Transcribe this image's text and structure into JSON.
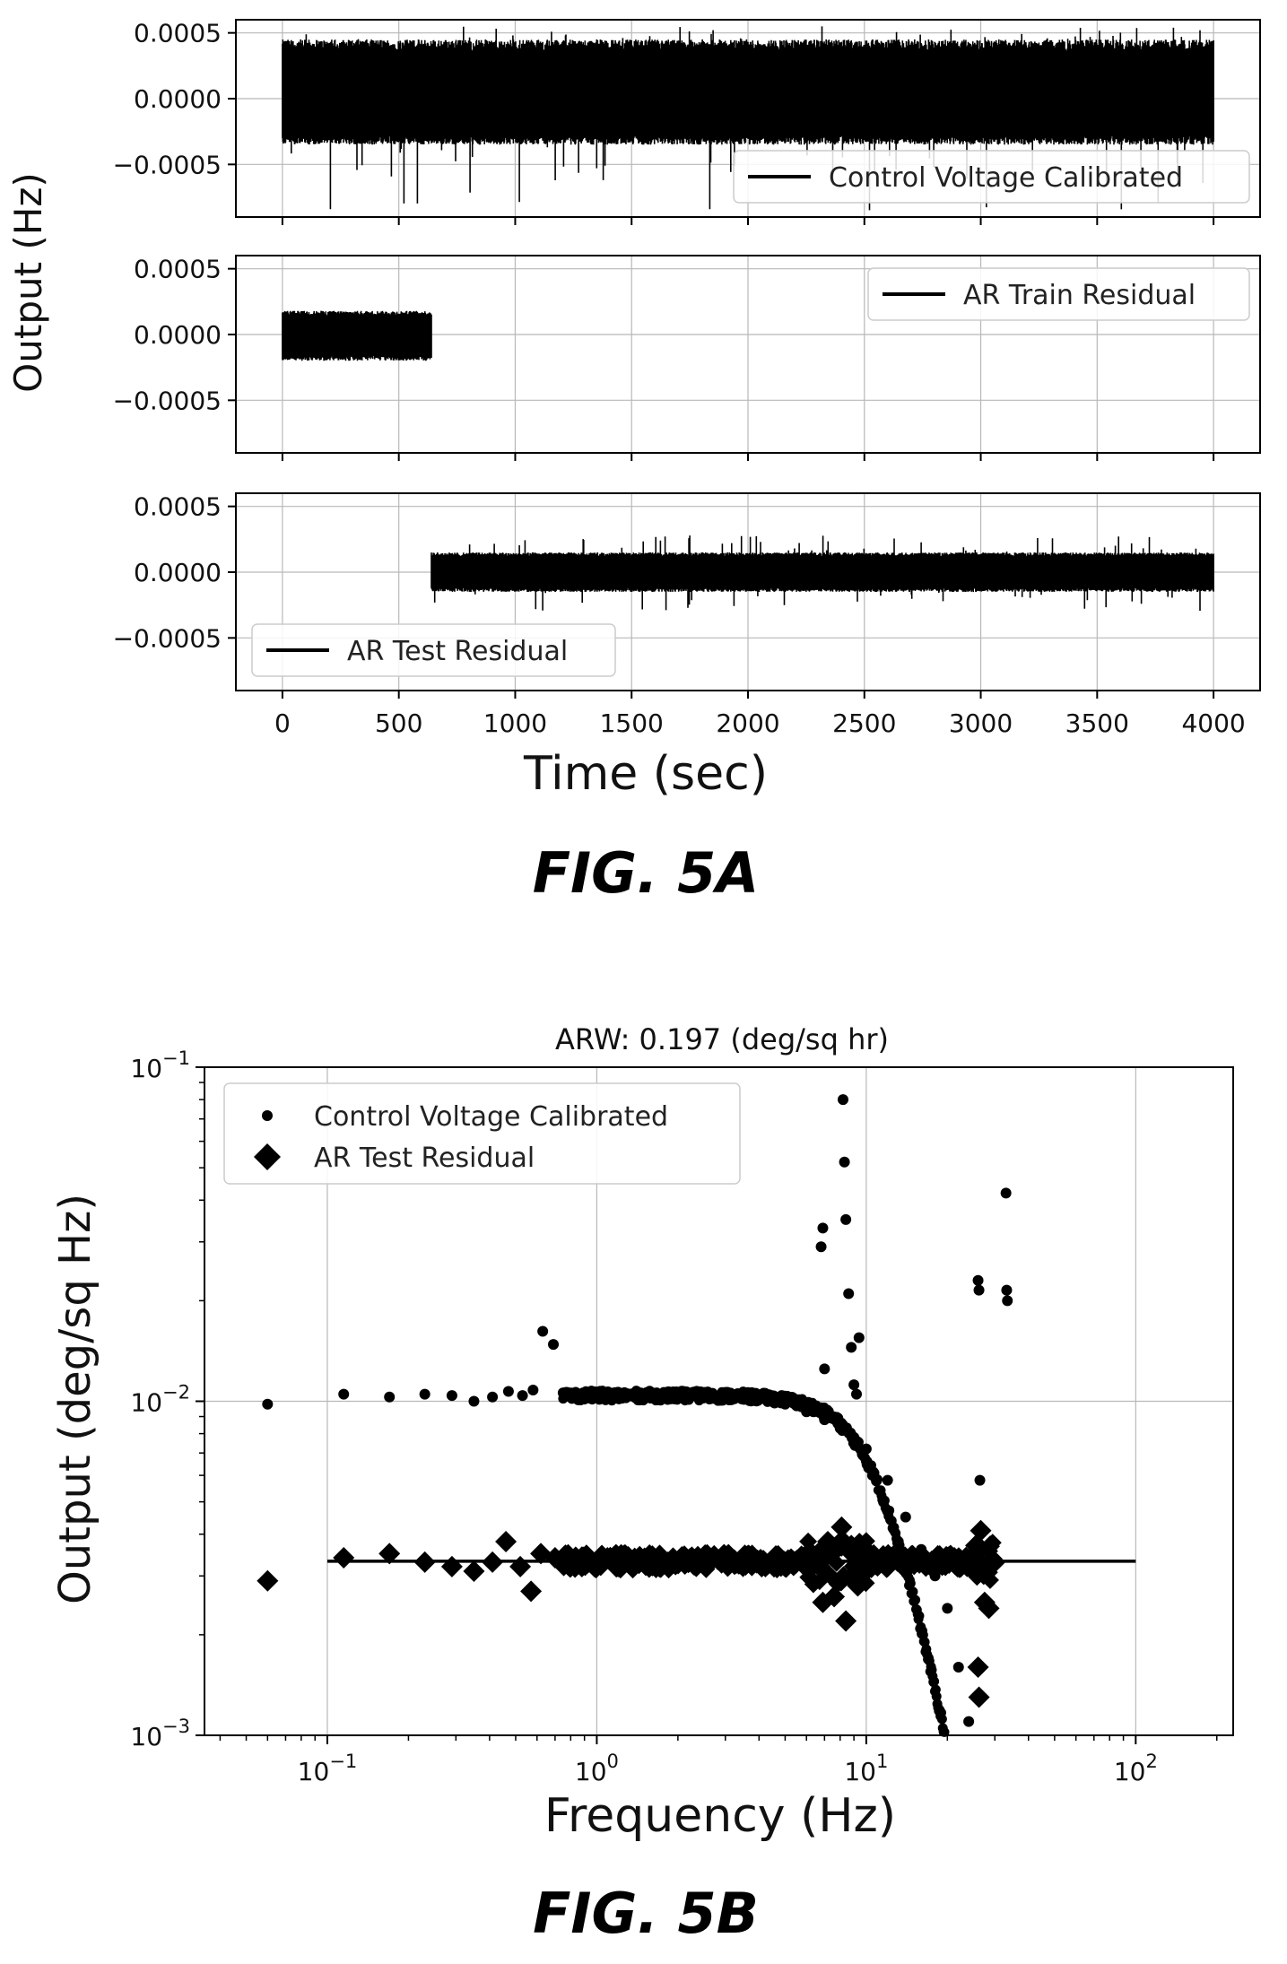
{
  "figure_a": {
    "caption": "FIG. 5A",
    "ylabel": "Output (Hz)",
    "xlabel": "Time (sec)",
    "x_ticks": [
      "0",
      "500",
      "1000",
      "1500",
      "2000",
      "2500",
      "3000",
      "3500",
      "4000"
    ],
    "y_ticks": [
      "0.0005",
      "0.0000",
      "−0.0005"
    ]
  },
  "figure_b": {
    "caption": "FIG. 5B",
    "title": "ARW: 0.197 (deg/sq hr)",
    "ylabel": "Output (deg/sq Hz)",
    "xlabel": "Frequency (Hz)"
  },
  "chart_data": [
    {
      "type": "line",
      "panel": 1,
      "series": [
        {
          "name": "Control Voltage Calibrated",
          "color": "#000000",
          "x_range": [
            0,
            4000
          ],
          "typical_band": [
            -0.00035,
            0.00045
          ],
          "spike_range": [
            -0.00085,
            0.00055
          ]
        }
      ],
      "xlim": [
        -200,
        4200
      ],
      "ylim": [
        -0.0009,
        0.0006
      ],
      "yticks": [
        0.0005,
        0.0,
        -0.0005
      ],
      "legend": "bottom-right",
      "grid": true
    },
    {
      "type": "line",
      "panel": 2,
      "series": [
        {
          "name": "AR Train Residual",
          "color": "#000000",
          "x_range": [
            0,
            640
          ],
          "typical_band": [
            -0.0002,
            0.00018
          ]
        }
      ],
      "xlim": [
        -200,
        4200
      ],
      "ylim": [
        -0.0009,
        0.0006
      ],
      "yticks": [
        0.0005,
        0.0,
        -0.0005
      ],
      "legend": "top-right",
      "grid": true
    },
    {
      "type": "line",
      "panel": 3,
      "series": [
        {
          "name": "AR Test Residual",
          "color": "#000000",
          "x_range": [
            640,
            4000
          ],
          "typical_band": [
            -0.00015,
            0.00015
          ],
          "spike_range": [
            -0.0003,
            0.00028
          ]
        }
      ],
      "xlim": [
        -200,
        4200
      ],
      "ylim": [
        -0.0009,
        0.0006
      ],
      "xticks": [
        0,
        500,
        1000,
        1500,
        2000,
        2500,
        3000,
        3500,
        4000
      ],
      "yticks": [
        0.0005,
        0.0,
        -0.0005
      ],
      "legend": "bottom-left",
      "grid": true
    },
    {
      "type": "scatter",
      "xscale": "log",
      "yscale": "log",
      "xlim": [
        0.035,
        230
      ],
      "ylim": [
        0.001,
        0.1
      ],
      "xtick_exponents": [
        -1,
        0,
        1,
        2
      ],
      "ytick_exponents": [
        -3,
        -2,
        -1
      ],
      "legend": "top-left",
      "grid": true,
      "series": [
        {
          "name": "Control Voltage Calibrated",
          "marker": "dot",
          "points": [
            [
              0.06,
              0.0098
            ],
            [
              0.115,
              0.0105
            ],
            [
              0.17,
              0.0103
            ],
            [
              0.23,
              0.0105
            ],
            [
              0.29,
              0.0104
            ],
            [
              0.35,
              0.01
            ],
            [
              0.41,
              0.0103
            ],
            [
              0.47,
              0.0107
            ],
            [
              0.53,
              0.0104
            ],
            [
              0.58,
              0.0108
            ],
            [
              0.63,
              0.0162
            ],
            [
              0.69,
              0.0148
            ],
            [
              0.75,
              0.0106
            ],
            [
              0.8,
              0.0105
            ],
            [
              0.9,
              0.0104
            ],
            [
              1.0,
              0.0104
            ],
            [
              1.2,
              0.0102
            ],
            [
              1.5,
              0.0103
            ],
            [
              2.0,
              0.0103
            ],
            [
              2.5,
              0.0104
            ],
            [
              3.0,
              0.0104
            ],
            [
              3.5,
              0.0103
            ],
            [
              4.0,
              0.0102
            ],
            [
              5.0,
              0.0098
            ],
            [
              6.0,
              0.0093
            ],
            [
              7.0,
              0.0088
            ],
            [
              8.0,
              0.0083
            ],
            [
              9.0,
              0.0078
            ],
            [
              10.0,
              0.0072
            ],
            [
              12.0,
              0.0058
            ],
            [
              14.0,
              0.0045
            ],
            [
              16.0,
              0.0036
            ],
            [
              18.0,
              0.003
            ],
            [
              20.0,
              0.0024
            ],
            [
              22.0,
              0.0016
            ],
            [
              24.0,
              0.0011
            ],
            [
              6.8,
              0.029
            ],
            [
              6.9,
              0.033
            ],
            [
              7.0,
              0.0125
            ],
            [
              8.2,
              0.08
            ],
            [
              8.3,
              0.052
            ],
            [
              8.4,
              0.035
            ],
            [
              8.6,
              0.021
            ],
            [
              8.8,
              0.0145
            ],
            [
              9.0,
              0.0112
            ],
            [
              9.2,
              0.0105
            ],
            [
              9.4,
              0.0155
            ],
            [
              26.0,
              0.023
            ],
            [
              26.2,
              0.0215
            ],
            [
              26.4,
              0.0058
            ],
            [
              33.0,
              0.042
            ],
            [
              33.2,
              0.0215
            ],
            [
              33.4,
              0.02
            ]
          ]
        },
        {
          "name": "AR Test Residual",
          "marker": "diamond",
          "fit_line": {
            "x": [
              0.1,
              100
            ],
            "y": 0.00332
          },
          "points": [
            [
              0.06,
              0.0029
            ],
            [
              0.115,
              0.0034
            ],
            [
              0.17,
              0.0035
            ],
            [
              0.23,
              0.0033
            ],
            [
              0.29,
              0.0032
            ],
            [
              0.35,
              0.0031
            ],
            [
              0.41,
              0.0033
            ],
            [
              0.46,
              0.0038
            ],
            [
              0.52,
              0.0032
            ],
            [
              0.57,
              0.0027
            ],
            [
              0.62,
              0.0035
            ],
            [
              0.7,
              0.0034
            ],
            [
              0.8,
              0.0032
            ],
            [
              1.0,
              0.0032
            ],
            [
              1.5,
              0.0033
            ],
            [
              2.0,
              0.0033
            ],
            [
              3.0,
              0.0033
            ],
            [
              4.0,
              0.0033
            ],
            [
              5.0,
              0.0032
            ],
            [
              6.0,
              0.0034
            ],
            [
              6.9,
              0.0025
            ],
            [
              7.2,
              0.0038
            ],
            [
              7.6,
              0.0026
            ],
            [
              8.1,
              0.0042
            ],
            [
              8.4,
              0.0022
            ],
            [
              8.8,
              0.0037
            ],
            [
              9.3,
              0.0028
            ],
            [
              10,
              0.0033
            ],
            [
              12,
              0.0032
            ],
            [
              15,
              0.0033
            ],
            [
              18,
              0.0032
            ],
            [
              22,
              0.0033
            ],
            [
              25.5,
              0.0037
            ],
            [
              26.0,
              0.0016
            ],
            [
              26.2,
              0.0013
            ],
            [
              26.6,
              0.0041
            ],
            [
              27.5,
              0.0025
            ],
            [
              28.5,
              0.0024
            ],
            [
              30.0,
              0.0033
            ]
          ]
        }
      ]
    }
  ]
}
